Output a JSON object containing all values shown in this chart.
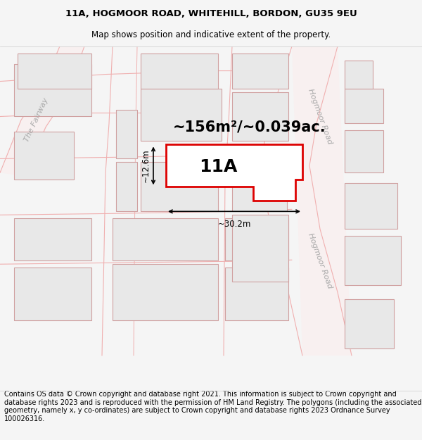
{
  "title_line1": "11A, HOGMOOR ROAD, WHITEHILL, BORDON, GU35 9EU",
  "title_line2": "Map shows position and indicative extent of the property.",
  "area_text": "~156m²/~0.039ac.",
  "label_11A": "11A",
  "dim_width": "~30.2m",
  "dim_height": "~12.6m",
  "footer": "Contains OS data © Crown copyright and database right 2021. This information is subject to Crown copyright and database rights 2023 and is reproduced with the permission of HM Land Registry. The polygons (including the associated geometry, namely x, y co-ordinates) are subject to Crown copyright and database rights 2023 Ordnance Survey 100026316.",
  "bg_color": "#f5f5f5",
  "map_bg": "#ffffff",
  "road_line_color": "#f0b0b0",
  "building_fill": "#e8e8e8",
  "building_edge": "#d0a0a0",
  "plot_color": "#dd0000",
  "dim_color": "#000000",
  "road_label_color": "#aaaaaa",
  "footer_bg": "#f5f5f5",
  "footer_fontsize": 7.0,
  "title_fontsize1": 9.5,
  "title_fontsize2": 8.5,
  "area_fontsize": 15,
  "label_fontsize": 18,
  "dim_fontsize": 8.5
}
